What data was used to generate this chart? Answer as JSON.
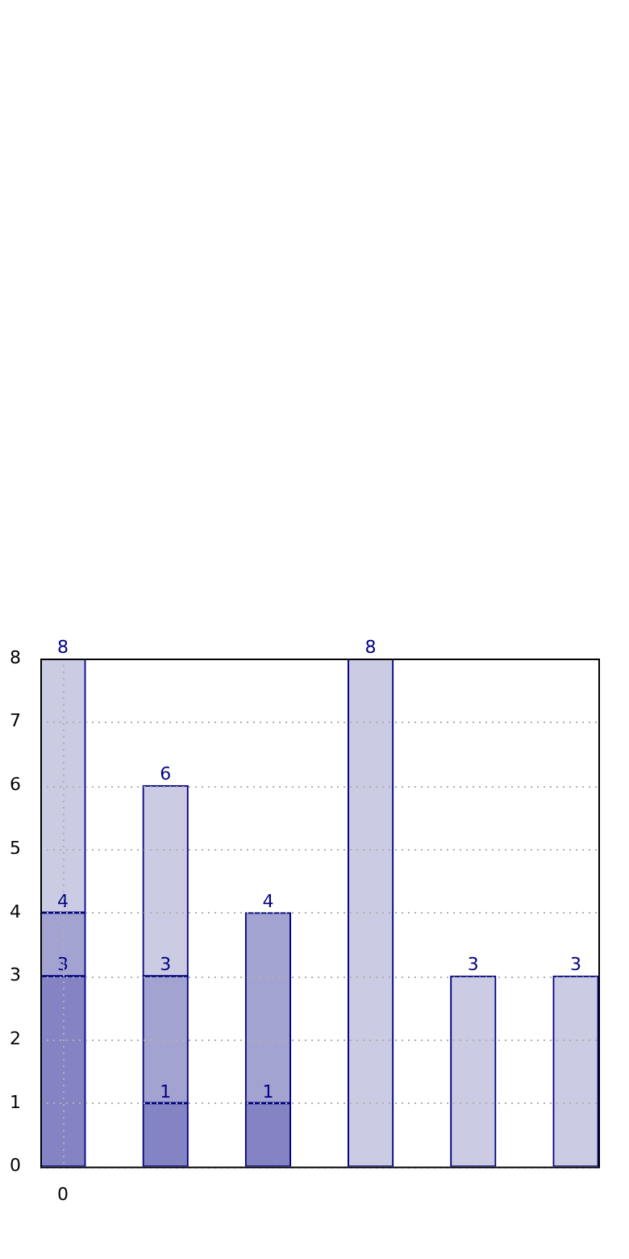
{
  "chart_data": {
    "type": "bar",
    "stacked": true,
    "categories": [
      "0",
      null,
      null,
      null,
      null,
      null
    ],
    "series": [
      {
        "color": "#8484c4",
        "values": [
          3,
          1,
          1,
          null,
          null,
          null
        ],
        "value_labels": [
          "3",
          "1",
          "1",
          null,
          null,
          null
        ]
      },
      {
        "color": "#a3a3d2",
        "values": [
          1,
          2,
          3,
          null,
          null,
          null
        ]
      },
      {
        "color": "#cbcbe4",
        "values": [
          4,
          3,
          null,
          8,
          3,
          3
        ]
      }
    ],
    "totals": [
      "8",
      "6",
      "4",
      "8",
      "3",
      "3"
    ],
    "annotations": [
      {
        "text": "4",
        "x": "0",
        "y": 4
      },
      {
        "text": "3",
        "y": 3
      }
    ],
    "ylim": [
      0,
      8
    ],
    "yticks": [
      0,
      1,
      2,
      3,
      4,
      5,
      6,
      7,
      8
    ],
    "grid": true,
    "legend": false
  }
}
